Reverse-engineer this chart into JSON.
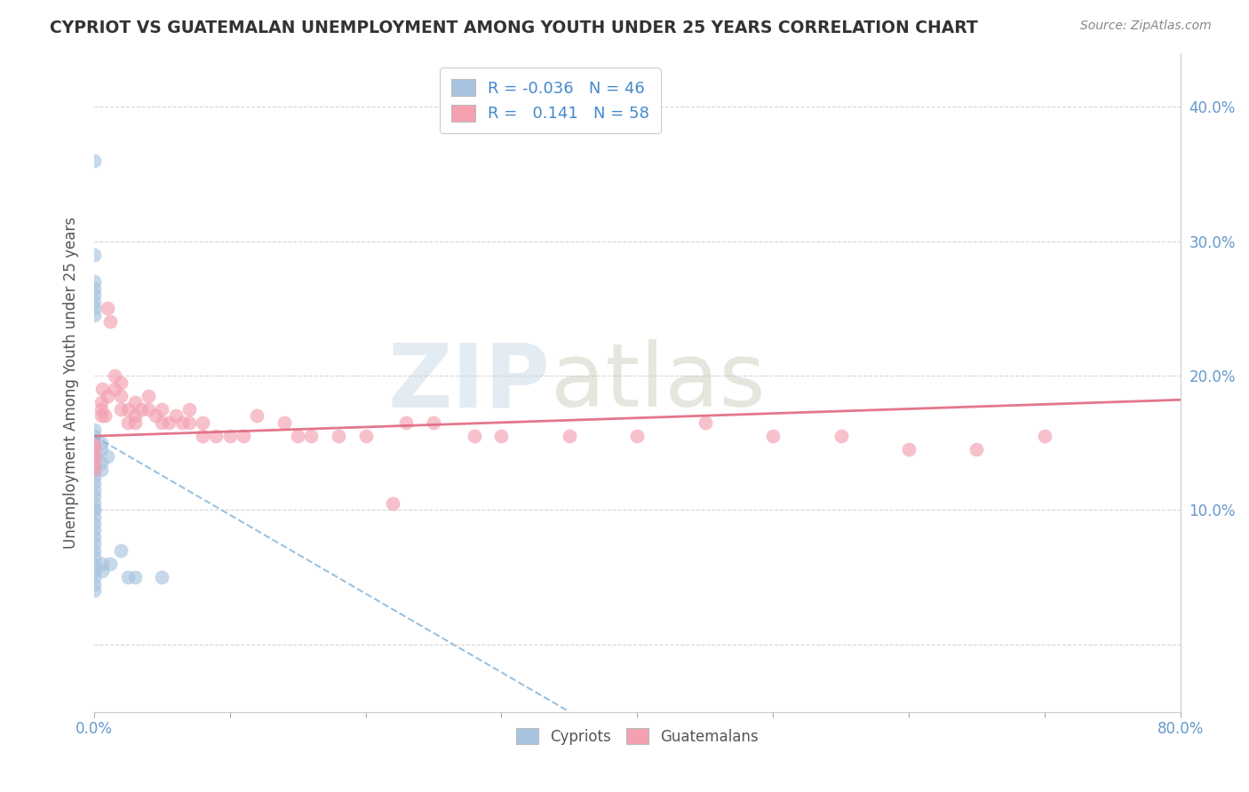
{
  "title": "CYPRIOT VS GUATEMALAN UNEMPLOYMENT AMONG YOUTH UNDER 25 YEARS CORRELATION CHART",
  "source": "Source: ZipAtlas.com",
  "ylabel": "Unemployment Among Youth under 25 years",
  "xlim": [
    0.0,
    0.8
  ],
  "ylim": [
    -0.05,
    0.44
  ],
  "yticks": [
    0.0,
    0.1,
    0.2,
    0.3,
    0.4
  ],
  "ytick_labels": [
    "",
    "10.0%",
    "20.0%",
    "30.0%",
    "40.0%"
  ],
  "xticks": [
    0.0,
    0.1,
    0.2,
    0.3,
    0.4,
    0.5,
    0.6,
    0.7,
    0.8
  ],
  "xtick_labels": [
    "0.0%",
    "",
    "",
    "",
    "",
    "",
    "",
    "",
    "80.0%"
  ],
  "legend_r_cypriot": "-0.036",
  "legend_n_cypriot": "46",
  "legend_r_guatemalan": "0.141",
  "legend_n_guatemalan": "58",
  "cypriot_color": "#a8c4e0",
  "guatemalan_color": "#f4a0b0",
  "cypriot_line_color": "#7aaed6",
  "guatemalan_line_color": "#e06880",
  "background_color": "#ffffff",
  "grid_color": "#cccccc",
  "watermark_zip": "ZIP",
  "watermark_atlas": "atlas",
  "cypriot_x": [
    0.0,
    0.0,
    0.0,
    0.0,
    0.0,
    0.0,
    0.0,
    0.0,
    0.0,
    0.0,
    0.0,
    0.0,
    0.0,
    0.0,
    0.0,
    0.0,
    0.0,
    0.0,
    0.0,
    0.0,
    0.0,
    0.0,
    0.0,
    0.0,
    0.0,
    0.0,
    0.0,
    0.0,
    0.0,
    0.0,
    0.0,
    0.0,
    0.0,
    0.0,
    0.005,
    0.005,
    0.005,
    0.005,
    0.006,
    0.006,
    0.01,
    0.012,
    0.02,
    0.025,
    0.03,
    0.05
  ],
  "cypriot_y": [
    0.36,
    0.29,
    0.27,
    0.265,
    0.26,
    0.255,
    0.25,
    0.245,
    0.16,
    0.155,
    0.15,
    0.145,
    0.14,
    0.135,
    0.13,
    0.125,
    0.12,
    0.115,
    0.11,
    0.105,
    0.1,
    0.1,
    0.095,
    0.09,
    0.085,
    0.08,
    0.075,
    0.07,
    0.065,
    0.06,
    0.055,
    0.05,
    0.045,
    0.04,
    0.15,
    0.145,
    0.135,
    0.13,
    0.06,
    0.055,
    0.14,
    0.06,
    0.07,
    0.05,
    0.05,
    0.05
  ],
  "guatemalan_x": [
    0.0,
    0.0,
    0.0,
    0.0,
    0.0,
    0.005,
    0.005,
    0.005,
    0.006,
    0.008,
    0.01,
    0.01,
    0.012,
    0.015,
    0.015,
    0.02,
    0.02,
    0.02,
    0.025,
    0.025,
    0.03,
    0.03,
    0.03,
    0.035,
    0.04,
    0.04,
    0.045,
    0.05,
    0.05,
    0.055,
    0.06,
    0.065,
    0.07,
    0.07,
    0.08,
    0.08,
    0.09,
    0.1,
    0.11,
    0.12,
    0.14,
    0.15,
    0.16,
    0.18,
    0.2,
    0.22,
    0.23,
    0.25,
    0.28,
    0.3,
    0.35,
    0.4,
    0.45,
    0.5,
    0.55,
    0.6,
    0.65,
    0.7
  ],
  "guatemalan_y": [
    0.15,
    0.145,
    0.14,
    0.135,
    0.13,
    0.18,
    0.175,
    0.17,
    0.19,
    0.17,
    0.25,
    0.185,
    0.24,
    0.2,
    0.19,
    0.195,
    0.185,
    0.175,
    0.175,
    0.165,
    0.17,
    0.18,
    0.165,
    0.175,
    0.185,
    0.175,
    0.17,
    0.175,
    0.165,
    0.165,
    0.17,
    0.165,
    0.175,
    0.165,
    0.165,
    0.155,
    0.155,
    0.155,
    0.155,
    0.17,
    0.165,
    0.155,
    0.155,
    0.155,
    0.155,
    0.105,
    0.165,
    0.165,
    0.155,
    0.155,
    0.155,
    0.155,
    0.165,
    0.155,
    0.155,
    0.145,
    0.145,
    0.155
  ],
  "guat_line_x0": 0.0,
  "guat_line_y0": 0.155,
  "guat_line_x1": 0.8,
  "guat_line_y1": 0.182,
  "cyp_line_x0": 0.0,
  "cyp_line_y0": 0.155,
  "cyp_line_x1": 0.35,
  "cyp_line_y1": -0.05
}
